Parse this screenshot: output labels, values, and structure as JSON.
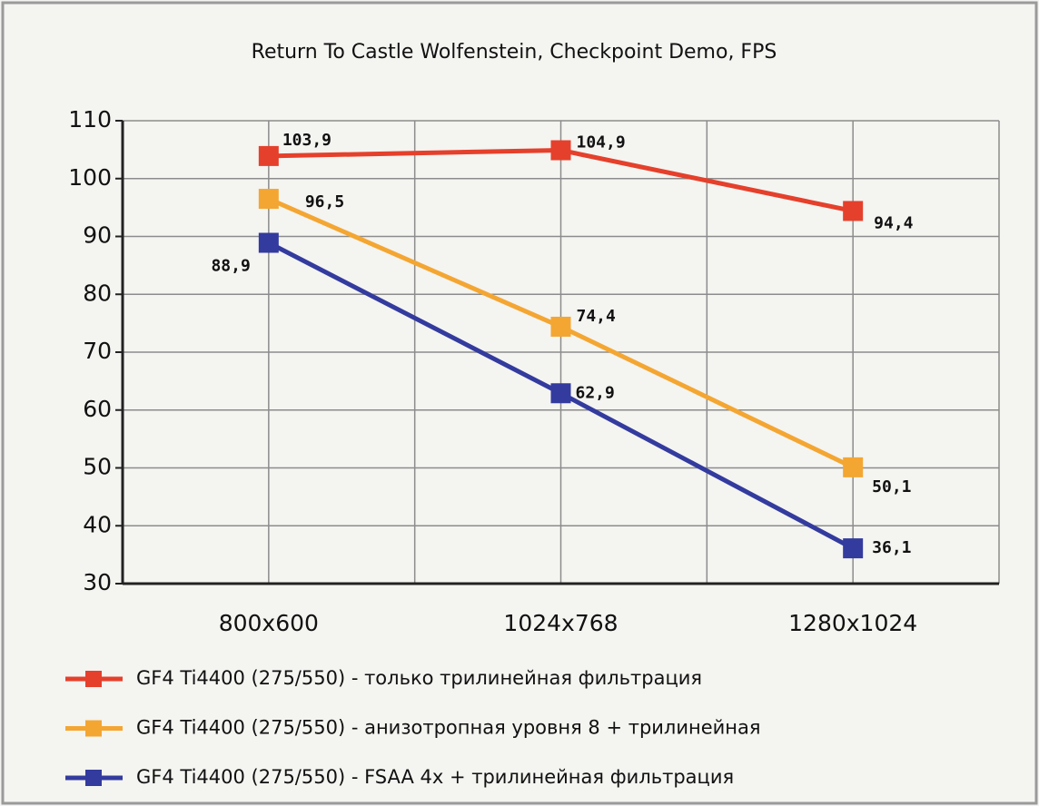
{
  "chart_data": {
    "type": "line",
    "title": "Return To Castle Wolfenstein, Checkpoint Demo, FPS",
    "categories": [
      "800x600",
      "1024x768",
      "1280x1024"
    ],
    "series": [
      {
        "name": "GF4 Ti4400 (275/550) - только трилинейная фильтрация",
        "color": "#e5402b",
        "values": [
          103.9,
          104.9,
          94.4
        ],
        "value_labels": [
          "103,9",
          "104,9",
          "94,4"
        ]
      },
      {
        "name": "GF4 Ti4400 (275/550) - анизотропная уровня 8 + трилинейная",
        "color": "#f4a632",
        "values": [
          96.5,
          74.4,
          50.1
        ],
        "value_labels": [
          "96,5",
          "74,4",
          "50,1"
        ]
      },
      {
        "name": "GF4 Ti4400 (275/550) - FSAA 4x + трилинейная фильтрация",
        "color": "#333b9e",
        "values": [
          88.9,
          62.9,
          36.1
        ],
        "value_labels": [
          "88,9",
          "62,9",
          "36,1"
        ]
      }
    ],
    "ylim": [
      30,
      110
    ],
    "yticks": [
      30,
      40,
      50,
      60,
      70,
      80,
      90,
      100,
      110
    ],
    "grid": true,
    "legend": "bottom"
  }
}
